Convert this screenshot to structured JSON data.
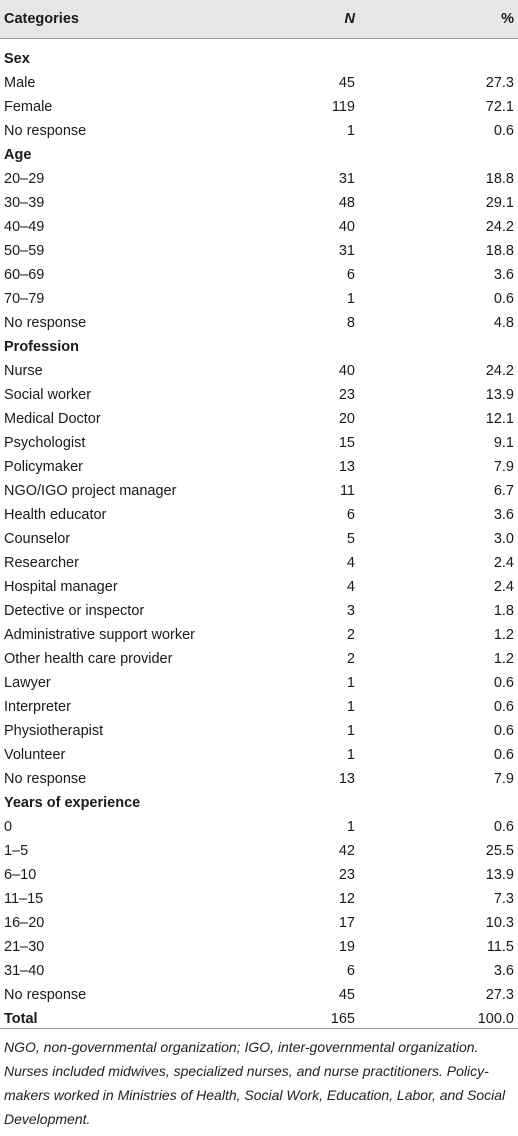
{
  "table": {
    "columns": [
      "Categories",
      "N",
      "%"
    ],
    "sections": [
      {
        "title": "Sex",
        "rows": [
          [
            "Male",
            "45",
            "27.3"
          ],
          [
            "Female",
            "119",
            "72.1"
          ],
          [
            "No response",
            "1",
            "0.6"
          ]
        ]
      },
      {
        "title": "Age",
        "rows": [
          [
            "20–29",
            "31",
            "18.8"
          ],
          [
            "30–39",
            "48",
            "29.1"
          ],
          [
            "40–49",
            "40",
            "24.2"
          ],
          [
            "50–59",
            "31",
            "18.8"
          ],
          [
            "60–69",
            "6",
            "3.6"
          ],
          [
            "70–79",
            "1",
            "0.6"
          ],
          [
            "No response",
            "8",
            "4.8"
          ]
        ]
      },
      {
        "title": "Profession",
        "rows": [
          [
            "Nurse",
            "40",
            "24.2"
          ],
          [
            "Social worker",
            "23",
            "13.9"
          ],
          [
            "Medical Doctor",
            "20",
            "12.1"
          ],
          [
            "Psychologist",
            "15",
            "9.1"
          ],
          [
            "Policymaker",
            "13",
            "7.9"
          ],
          [
            "NGO/IGO project manager",
            "11",
            "6.7"
          ],
          [
            "Health educator",
            "6",
            "3.6"
          ],
          [
            "Counselor",
            "5",
            "3.0"
          ],
          [
            "Researcher",
            "4",
            "2.4"
          ],
          [
            "Hospital manager",
            "4",
            "2.4"
          ],
          [
            "Detective or inspector",
            "3",
            "1.8"
          ],
          [
            "Administrative support worker",
            "2",
            "1.2"
          ],
          [
            "Other health care provider",
            "2",
            "1.2"
          ],
          [
            "Lawyer",
            "1",
            "0.6"
          ],
          [
            "Interpreter",
            "1",
            "0.6"
          ],
          [
            "Physiotherapist",
            "1",
            "0.6"
          ],
          [
            "Volunteer",
            "1",
            "0.6"
          ],
          [
            "No response",
            "13",
            "7.9"
          ]
        ]
      },
      {
        "title": "Years of experience",
        "rows": [
          [
            "0",
            "1",
            "0.6"
          ],
          [
            "1–5",
            "42",
            "25.5"
          ],
          [
            "6–10",
            "23",
            "13.9"
          ],
          [
            "11–15",
            "12",
            "7.3"
          ],
          [
            "16–20",
            "17",
            "10.3"
          ],
          [
            "21–30",
            "19",
            "11.5"
          ],
          [
            "31–40",
            "6",
            "3.6"
          ],
          [
            "No response",
            "45",
            "27.3"
          ]
        ]
      }
    ],
    "total": [
      "Total",
      "165",
      "100.0"
    ]
  },
  "footnotes": [
    "NGO, non-governmental organization; IGO, inter-governmental organization.",
    "Nurses included midwives, specialized nurses, and nurse practitioners. Policy-makers worked in Ministries of Health, Social Work, Education, Labor, and Social Development."
  ]
}
